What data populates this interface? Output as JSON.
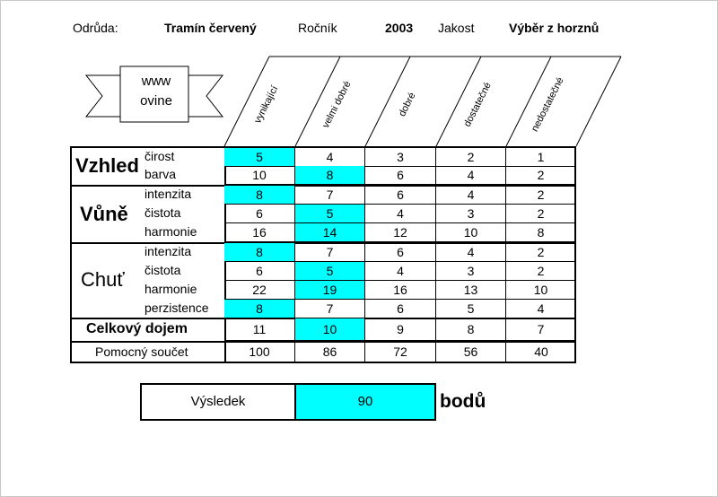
{
  "header": {
    "odruda_label": "Odrůda:",
    "odruda_value": "Tramín červený",
    "rocnik_label": "Ročník",
    "rocnik_value": "2003",
    "jakost_label": "Jakost",
    "jakost_value": "Výběr z horznů"
  },
  "logo": {
    "line1": "www",
    "line2": "ovine"
  },
  "columns": [
    "vynikající",
    "velmi dobré",
    "dobré",
    "dostatečné",
    "nedostatečné"
  ],
  "groups": [
    {
      "name": "Vzhled",
      "rows": [
        {
          "label": "čirost",
          "values": [
            "5",
            "4",
            "3",
            "2",
            "1"
          ],
          "selected": 0
        },
        {
          "label": "barva",
          "values": [
            "10",
            "8",
            "6",
            "4",
            "2"
          ],
          "selected": 1
        }
      ]
    },
    {
      "name": "Vůně",
      "rows": [
        {
          "label": "intenzita",
          "values": [
            "8",
            "7",
            "6",
            "4",
            "2"
          ],
          "selected": 0
        },
        {
          "label": "čistota",
          "values": [
            "6",
            "5",
            "4",
            "3",
            "2"
          ],
          "selected": 1
        },
        {
          "label": "harmonie",
          "values": [
            "16",
            "14",
            "12",
            "10",
            "8"
          ],
          "selected": 1
        }
      ]
    },
    {
      "name": "Chuť",
      "rows": [
        {
          "label": "intenzita",
          "values": [
            "8",
            "7",
            "6",
            "4",
            "2"
          ],
          "selected": 0
        },
        {
          "label": "čistota",
          "values": [
            "6",
            "5",
            "4",
            "3",
            "2"
          ],
          "selected": 1
        },
        {
          "label": "harmonie",
          "values": [
            "22",
            "19",
            "16",
            "13",
            "10"
          ],
          "selected": 1
        },
        {
          "label": "perzistence",
          "values": [
            "8",
            "7",
            "6",
            "5",
            "4"
          ],
          "selected": 0
        }
      ]
    }
  ],
  "overall": {
    "label": "Celkový dojem",
    "values": [
      "11",
      "10",
      "9",
      "8",
      "7"
    ],
    "selected": 1
  },
  "helper": {
    "label": "Pomocný součet",
    "values": [
      "100",
      "86",
      "72",
      "56",
      "40"
    ]
  },
  "result": {
    "label": "Výsledek",
    "value": "90",
    "unit": "bodů"
  },
  "colors": {
    "highlight": "#00ffff"
  }
}
